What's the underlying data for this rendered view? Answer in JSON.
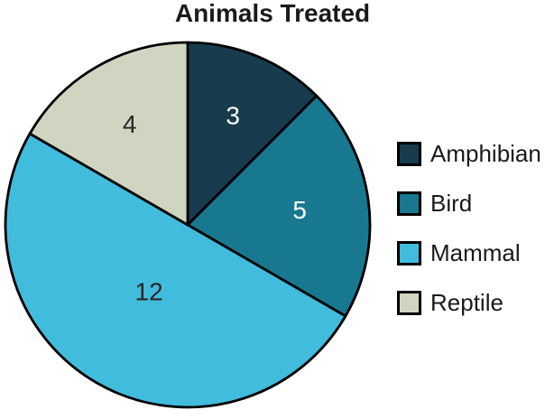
{
  "page": {
    "background": "#ffffff"
  },
  "chart_data": {
    "type": "pie",
    "title": "Animals Treated",
    "title_color": "#1a1a1a",
    "categories": [
      "Amphibian",
      "Bird",
      "Mammal",
      "Reptile"
    ],
    "values": [
      3,
      5,
      12,
      4
    ],
    "total": 24,
    "slice_colors": [
      "#173C4D",
      "#17788F",
      "#41BCDD",
      "#D0D5C1"
    ],
    "slice_label_colors": [
      "#FFFFFF",
      "#FFFFFF",
      "#262626",
      "#262626"
    ],
    "stroke_color": "#000000",
    "start_angle": "12-oclock",
    "direction": "clockwise",
    "legend_position": "right",
    "legend": [
      {
        "label": "Amphibian",
        "color": "#173C4D"
      },
      {
        "label": "Bird",
        "color": "#17788F"
      },
      {
        "label": "Mammal",
        "color": "#41BCDD"
      },
      {
        "label": "Reptile",
        "color": "#D0D5C1"
      }
    ]
  }
}
